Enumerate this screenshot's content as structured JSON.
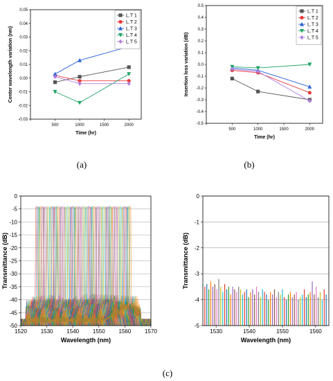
{
  "captions": {
    "a": "(a)",
    "b": "(b)",
    "c": "(c)"
  },
  "chart_data": [
    {
      "id": "a",
      "type": "line",
      "xlabel": "Time (hr)",
      "ylabel": "Center wavelength variation (nm)",
      "x": [
        500,
        1000,
        2000
      ],
      "xlim": [
        0,
        2250
      ],
      "xticks": [
        0,
        500,
        1000,
        1500,
        2000
      ],
      "ylim": [
        -0.03,
        0.05
      ],
      "yticks": [
        -0.03,
        -0.02,
        -0.01,
        0.0,
        0.01,
        0.02,
        0.03,
        0.04,
        0.05
      ],
      "ytick_labels": [
        "-0.03",
        "-0.02",
        "-0.01",
        "0.00",
        "0.01",
        "0.02",
        "0.03",
        "0.04",
        "0.05"
      ],
      "legend_position": "top-right",
      "series": [
        {
          "name": "L.T 1",
          "color": "#555555",
          "marker": "square",
          "values": [
            -0.003,
            0.001,
            0.008
          ]
        },
        {
          "name": "L.T 2",
          "color": "#e8393a",
          "marker": "circle",
          "values": [
            0.002,
            -0.002,
            -0.002
          ]
        },
        {
          "name": "L.T 3",
          "color": "#2e63d9",
          "marker": "triangle-up",
          "values": [
            0.003,
            0.013,
            0.023
          ]
        },
        {
          "name": "L.T 4",
          "color": "#1fa468",
          "marker": "triangle-down",
          "values": [
            -0.01,
            -0.018,
            0.003
          ]
        },
        {
          "name": "L.T 5",
          "color": "#b07ee0",
          "marker": "diamond",
          "values": [
            0.001,
            -0.004,
            -0.004
          ]
        }
      ]
    },
    {
      "id": "b",
      "type": "line",
      "xlabel": "Time (hr)",
      "ylabel": "Insertion loss variation (dB)",
      "x": [
        500,
        1000,
        2000
      ],
      "xlim": [
        0,
        2250
      ],
      "xticks": [
        0,
        500,
        1000,
        1500,
        2000
      ],
      "ylim": [
        -0.5,
        0.5
      ],
      "yticks": [
        -0.5,
        -0.4,
        -0.3,
        -0.2,
        -0.1,
        0.0,
        0.1,
        0.2,
        0.3,
        0.4,
        0.5
      ],
      "ytick_labels": [
        "-0.5",
        "-0.4",
        "-0.3",
        "-0.2",
        "-0.1",
        "0.0",
        "0.1",
        "0.2",
        "0.3",
        "0.4",
        "0.5"
      ],
      "legend_position": "top-right",
      "series": [
        {
          "name": "L.T 1",
          "color": "#555555",
          "marker": "square",
          "values": [
            -0.12,
            -0.23,
            -0.3
          ]
        },
        {
          "name": "L.T 2",
          "color": "#e8393a",
          "marker": "circle",
          "values": [
            -0.05,
            -0.07,
            -0.24
          ]
        },
        {
          "name": "L.T 3",
          "color": "#2e63d9",
          "marker": "triangle-up",
          "values": [
            -0.03,
            -0.05,
            -0.19
          ]
        },
        {
          "name": "L.T 4",
          "color": "#1fa468",
          "marker": "triangle-down",
          "values": [
            -0.02,
            -0.03,
            0.0
          ]
        },
        {
          "name": "L.T 5",
          "color": "#b07ee0",
          "marker": "diamond",
          "values": [
            -0.04,
            -0.06,
            -0.31
          ]
        }
      ]
    },
    {
      "id": "c1",
      "type": "line",
      "xlabel": "Wavelength (nm)",
      "ylabel": "Transmittance (dB)",
      "xlim": [
        1520,
        1570
      ],
      "xticks": [
        1520,
        1530,
        1540,
        1550,
        1560,
        1570
      ],
      "ylim": [
        -50,
        0
      ],
      "yticks": [
        -50,
        -45,
        -40,
        -35,
        -30,
        -25,
        -20,
        -15,
        -10,
        -5,
        0
      ],
      "grid": true,
      "channel_range": [
        1526,
        1562
      ],
      "channel_count": 64,
      "peak_level": -4,
      "floor_level": -48,
      "colors": [
        "#e63b2e",
        "#1f77b4",
        "#2ca02c",
        "#ff7f0e",
        "#9467bd",
        "#8c564b",
        "#e377c2",
        "#7f7f7f",
        "#bcbd22",
        "#17becf",
        "#d4a017",
        "#3a5fcd"
      ]
    },
    {
      "id": "c2",
      "type": "bar",
      "xlabel": "Wavelength (nm)",
      "ylabel": "Transmittance (dB)",
      "xlim": [
        1526,
        1564
      ],
      "xticks": [
        1530,
        1540,
        1550,
        1560
      ],
      "ylim": [
        -5,
        0
      ],
      "yticks": [
        -5,
        -4,
        -3,
        -2,
        -1,
        0
      ],
      "grid": true,
      "x": [
        1526.6,
        1527.2,
        1527.8,
        1528.4,
        1529.0,
        1529.6,
        1530.2,
        1530.8,
        1531.4,
        1532.0,
        1532.6,
        1533.2,
        1533.8,
        1534.4,
        1535.0,
        1535.6,
        1536.2,
        1536.8,
        1537.4,
        1538.0,
        1538.6,
        1539.2,
        1539.8,
        1540.4,
        1541.0,
        1541.6,
        1542.2,
        1542.8,
        1543.4,
        1544.0,
        1544.6,
        1545.2,
        1545.8,
        1546.4,
        1547.0,
        1547.6,
        1548.2,
        1548.8,
        1549.4,
        1550.0,
        1550.6,
        1551.2,
        1551.8,
        1552.4,
        1553.0,
        1553.6,
        1554.2,
        1554.8,
        1555.4,
        1556.0,
        1556.6,
        1557.2,
        1557.8,
        1558.4,
        1559.0,
        1559.6,
        1560.2,
        1560.8,
        1561.4,
        1562.0,
        1562.6,
        1563.2
      ],
      "values": [
        -3.5,
        -3.4,
        -3.6,
        -3.3,
        -3.5,
        -3.4,
        -3.6,
        -3.2,
        -3.5,
        -3.7,
        -3.4,
        -3.6,
        -3.5,
        -3.8,
        -3.5,
        -3.6,
        -3.7,
        -3.5,
        -3.6,
        -3.8,
        -3.7,
        -3.6,
        -3.9,
        -3.7,
        -3.6,
        -3.8,
        -3.5,
        -3.7,
        -3.9,
        -3.6,
        -3.7,
        -3.8,
        -4.0,
        -3.7,
        -3.8,
        -3.6,
        -3.9,
        -3.7,
        -3.8,
        -3.6,
        -3.9,
        -4.0,
        -3.8,
        -3.7,
        -3.9,
        -3.8,
        -3.7,
        -4.0,
        -3.9,
        -3.8,
        -3.6,
        -3.9,
        -3.8,
        -3.7,
        -3.3,
        -3.8,
        -3.5,
        -3.9,
        -3.7,
        -4.0,
        -3.6,
        -3.8
      ],
      "colors": [
        "#e63b2e",
        "#1f77b4",
        "#2ca02c",
        "#ff7f0e",
        "#9467bd",
        "#8c564b",
        "#e377c2",
        "#7f7f7f",
        "#bcbd22",
        "#17becf"
      ]
    }
  ]
}
